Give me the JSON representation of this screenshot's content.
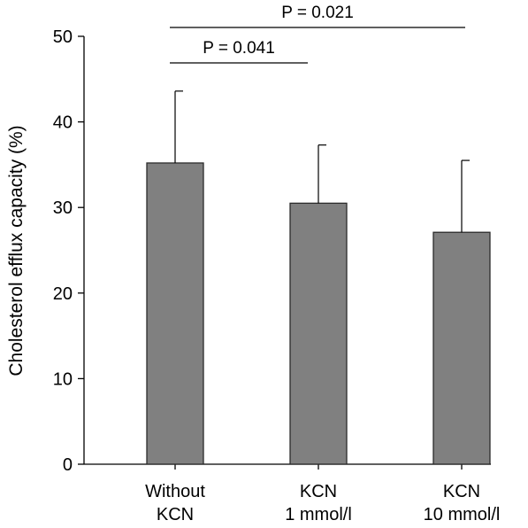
{
  "chart_data": {
    "type": "bar",
    "ylabel": "Cholesterol efflux capacity (%)",
    "ylim": [
      0,
      50
    ],
    "yticks": [
      0,
      10,
      20,
      30,
      40,
      50
    ],
    "categories": [
      [
        "Without",
        "KCN"
      ],
      [
        "KCN",
        "1 mmol/l"
      ],
      [
        "KCN",
        "10 mmol/l"
      ]
    ],
    "series": [
      {
        "values": [
          35.2,
          30.5,
          27.1
        ],
        "error_upper": [
          8.4,
          6.8,
          8.4
        ]
      }
    ],
    "colors": {
      "bar_fill": "#808080",
      "bar_stroke": "#2b2b2b",
      "axis": "#000000"
    },
    "annotations": [
      {
        "text": "P = 0.041",
        "from_index": 0,
        "to_index": 1,
        "level": 1
      },
      {
        "text": "P = 0.021",
        "from_index": 0,
        "to_index": 2,
        "level": 2
      }
    ]
  }
}
